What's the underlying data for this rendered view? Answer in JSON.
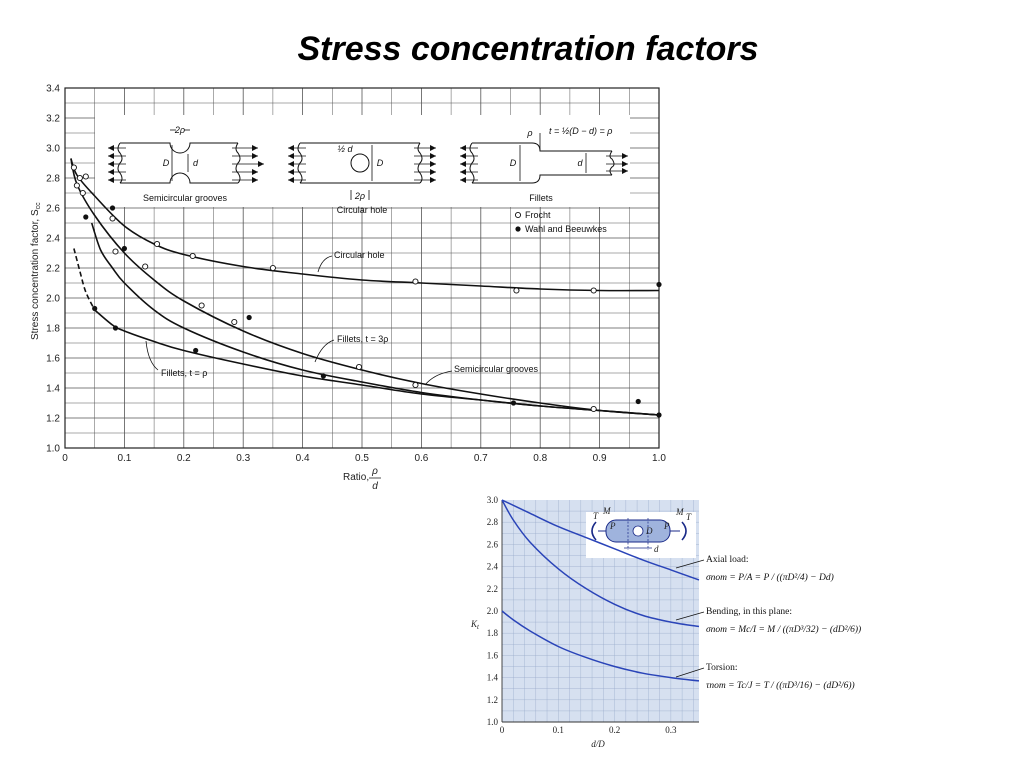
{
  "title": "Stress concentration factors",
  "chart_data": [
    {
      "type": "line",
      "xlabel": "Ratio,",
      "xlabel_fraction": {
        "num": "ρ",
        "den": "d"
      },
      "ylabel": "Stress concentration factor, S",
      "ylabel_sub": "cc",
      "xlim": [
        0,
        1.0
      ],
      "ylim": [
        1.0,
        3.4
      ],
      "x_ticks": [
        "0",
        "0.1",
        "0.2",
        "0.3",
        "0.4",
        "0.5",
        "0.6",
        "0.7",
        "0.8",
        "0.9",
        "1.0"
      ],
      "y_ticks": [
        "1.0",
        "1.2",
        "1.4",
        "1.6",
        "1.8",
        "2.0",
        "2.2",
        "2.4",
        "2.6",
        "2.8",
        "3.0",
        "3.2",
        "3.4"
      ],
      "grid": true,
      "series": [
        {
          "name": "Circular hole",
          "x": [
            0.01,
            0.02,
            0.05,
            0.1,
            0.15,
            0.2,
            0.3,
            0.4,
            0.5,
            0.6,
            0.7,
            0.8,
            0.9,
            1.0
          ],
          "y": [
            2.93,
            2.82,
            2.68,
            2.48,
            2.36,
            2.29,
            2.21,
            2.16,
            2.12,
            2.1,
            2.08,
            2.06,
            2.05,
            2.05
          ]
        },
        {
          "name": "Semicircular grooves",
          "x": [
            0.01,
            0.02,
            0.05,
            0.1,
            0.15,
            0.2,
            0.3,
            0.4,
            0.5,
            0.6,
            0.7,
            0.8,
            0.9,
            1.0
          ],
          "y": [
            2.93,
            2.76,
            2.55,
            2.3,
            2.12,
            1.98,
            1.78,
            1.63,
            1.52,
            1.43,
            1.36,
            1.3,
            1.25,
            1.22
          ]
        },
        {
          "name": "Fillets, t = 3ρ",
          "x": [
            0.045,
            0.06,
            0.08,
            0.1,
            0.15,
            0.2,
            0.3,
            0.4,
            0.5,
            0.6,
            0.7,
            0.8,
            0.9,
            1.0
          ],
          "y": [
            2.5,
            2.32,
            2.2,
            2.1,
            1.92,
            1.8,
            1.64,
            1.52,
            1.44,
            1.37,
            1.32,
            1.28,
            1.25,
            1.22
          ]
        },
        {
          "name": "Fillets, t = ρ",
          "x": [
            0.05,
            0.08,
            0.1,
            0.15,
            0.2,
            0.3,
            0.4,
            0.5,
            0.6,
            0.7,
            0.8,
            0.9,
            1.0
          ],
          "y": [
            1.92,
            1.82,
            1.78,
            1.71,
            1.65,
            1.56,
            1.48,
            1.42,
            1.36,
            1.32,
            1.28,
            1.25,
            1.22
          ]
        },
        {
          "name": "Fillets, t = ρ (dashed extension)",
          "x": [
            0.015,
            0.025,
            0.035,
            0.05
          ],
          "y": [
            2.33,
            2.18,
            2.04,
            1.92
          ]
        }
      ],
      "points_frocht": [
        [
          0.015,
          2.87
        ],
        [
          0.02,
          2.75
        ],
        [
          0.025,
          2.8
        ],
        [
          0.03,
          2.7
        ],
        [
          0.035,
          2.81
        ],
        [
          0.08,
          2.53
        ],
        [
          0.085,
          2.31
        ],
        [
          0.135,
          2.21
        ],
        [
          0.155,
          2.36
        ],
        [
          0.215,
          2.28
        ],
        [
          0.23,
          1.95
        ],
        [
          0.285,
          1.84
        ],
        [
          0.35,
          2.2
        ],
        [
          0.495,
          1.54
        ],
        [
          0.59,
          1.42
        ],
        [
          0.59,
          2.11
        ],
        [
          0.76,
          2.05
        ],
        [
          0.89,
          2.05
        ],
        [
          0.89,
          1.26
        ]
      ],
      "points_wahl": [
        [
          0.035,
          2.54
        ],
        [
          0.05,
          1.93
        ],
        [
          0.08,
          2.6
        ],
        [
          0.085,
          1.8
        ],
        [
          0.1,
          2.33
        ],
        [
          0.22,
          1.65
        ],
        [
          0.31,
          1.87
        ],
        [
          0.435,
          1.48
        ],
        [
          0.755,
          1.3
        ],
        [
          0.965,
          1.31
        ],
        [
          1.0,
          2.09
        ],
        [
          1.0,
          1.22
        ]
      ],
      "legend": {
        "frocht": "Frocht",
        "wahl": "Wahl and Beeuwkes",
        "position": "top-right"
      },
      "annotations": {
        "circular_hole": "Circular hole",
        "semicircular_grooves": "Semicircular grooves",
        "fillets_3rho": "Fillets, t = 3ρ",
        "fillets_rho": "Fillets, t = ρ"
      },
      "inset": {
        "grooves_label": "Semicircular grooves",
        "hole_label": "Circular hole",
        "fillets_label": "Fillets",
        "two_rho": "2ρ",
        "half_d": "½ d",
        "D": "D",
        "d": "d",
        "rho": "ρ",
        "t_def": "t = ½(D − d) = ρ"
      }
    },
    {
      "type": "line",
      "xlabel": "d/D",
      "ylabel": "K",
      "ylabel_sub": "t",
      "xlim": [
        0,
        0.35
      ],
      "ylim": [
        1.0,
        3.0
      ],
      "x_ticks": [
        "0",
        "0.1",
        "0.2",
        "0.3"
      ],
      "y_ticks": [
        "1.0",
        "1.2",
        "1.4",
        "1.6",
        "1.8",
        "2.0",
        "2.2",
        "2.4",
        "2.6",
        "2.8",
        "3.0"
      ],
      "grid": true,
      "series": [
        {
          "name": "Axial load",
          "x": [
            0,
            0.05,
            0.1,
            0.15,
            0.2,
            0.25,
            0.3,
            0.35
          ],
          "y": [
            3.0,
            2.88,
            2.76,
            2.66,
            2.56,
            2.46,
            2.37,
            2.28
          ]
        },
        {
          "name": "Bending, in this plane",
          "x": [
            0,
            0.02,
            0.05,
            0.1,
            0.15,
            0.2,
            0.25,
            0.3,
            0.35
          ],
          "y": [
            3.0,
            2.82,
            2.62,
            2.38,
            2.2,
            2.06,
            1.96,
            1.9,
            1.86
          ]
        },
        {
          "name": "Torsion",
          "x": [
            0,
            0.02,
            0.05,
            0.1,
            0.15,
            0.2,
            0.25,
            0.3,
            0.35
          ],
          "y": [
            2.0,
            1.92,
            1.82,
            1.68,
            1.58,
            1.5,
            1.44,
            1.4,
            1.37
          ]
        }
      ],
      "annotations": {
        "axial": {
          "label": "Axial load:",
          "formula": "σnom = P/A = P / ((πD²/4) − Dd)"
        },
        "bending": {
          "label": "Bending, in this plane:",
          "formula": "σnom = Mc/I = M / ((πD³/32) − (dD²/6))"
        },
        "torsion": {
          "label": "Torsion:",
          "formula": "τnom = Tc/J = T / ((πD³/16) − (dD²/6))"
        }
      },
      "inset": {
        "M": "M",
        "T": "T",
        "P": "P",
        "D": "D",
        "d": "d"
      },
      "colors": {
        "background": "#d6e0f0",
        "curve": "#2a44b8",
        "grid": "#9aaccc"
      }
    }
  ]
}
